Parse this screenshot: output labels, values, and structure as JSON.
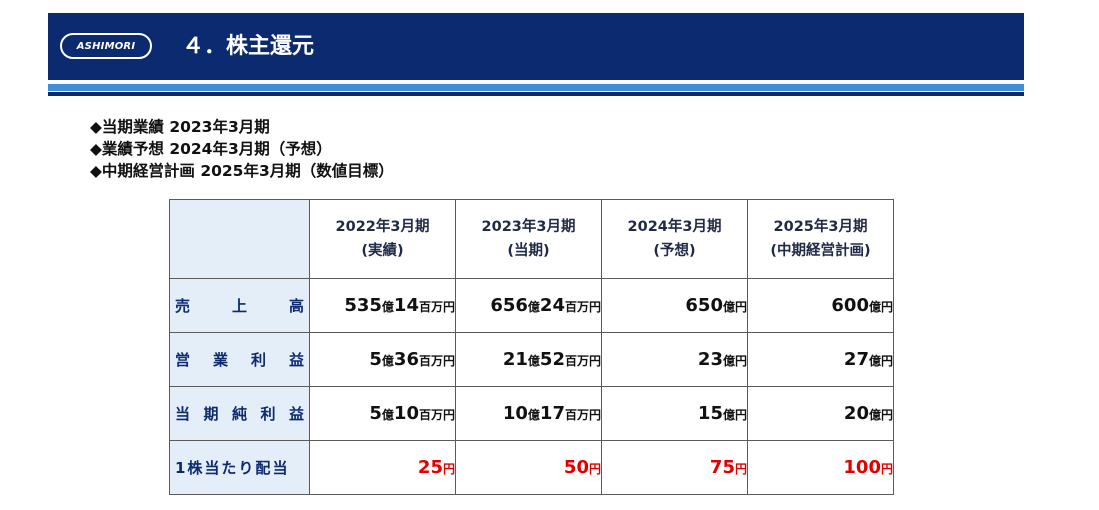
{
  "header": {
    "logo_text": "ASHIMORI",
    "title": "４．株主還元"
  },
  "bullets": [
    "◆当期業績 2023年3月期",
    "◆業績予想 2024年3月期（予想）",
    "◆中期経営計画 2025年3月期（数値目標）"
  ],
  "table": {
    "columns": [
      {
        "line1": "2022年3月期",
        "line2": "(実績)"
      },
      {
        "line1": "2023年3月期",
        "line2": "(当期)"
      },
      {
        "line1": "2024年3月期",
        "line2": "(予想)"
      },
      {
        "line1": "2025年3月期",
        "line2": "(中期経営計画)"
      }
    ],
    "rows": [
      {
        "label_chars": [
          "売",
          "上",
          "高"
        ],
        "cells": [
          {
            "a": "535",
            "b": "億",
            "c": "14",
            "d": "百万円"
          },
          {
            "a": "656",
            "b": "億",
            "c": "24",
            "d": "百万円"
          },
          {
            "a": "650",
            "b": "億円",
            "c": "",
            "d": ""
          },
          {
            "a": "600",
            "b": "億円",
            "c": "",
            "d": ""
          }
        ]
      },
      {
        "label_chars": [
          "営",
          "業",
          "利",
          "益"
        ],
        "cells": [
          {
            "a": "5",
            "b": "億",
            "c": "36",
            "d": "百万円"
          },
          {
            "a": "21",
            "b": "億",
            "c": "52",
            "d": "百万円"
          },
          {
            "a": "23",
            "b": "億円",
            "c": "",
            "d": ""
          },
          {
            "a": "27",
            "b": "億円",
            "c": "",
            "d": ""
          }
        ]
      },
      {
        "label_chars": [
          "当",
          "期",
          "純",
          "利",
          "益"
        ],
        "cells": [
          {
            "a": "5",
            "b": "億",
            "c": "10",
            "d": "百万円"
          },
          {
            "a": "10",
            "b": "億",
            "c": "17",
            "d": "百万円"
          },
          {
            "a": "15",
            "b": "億円",
            "c": "",
            "d": ""
          },
          {
            "a": "20",
            "b": "億円",
            "c": "",
            "d": ""
          }
        ]
      }
    ],
    "dividend": {
      "label": "1株当たり配当",
      "cells": [
        {
          "a": "25",
          "b": "円"
        },
        {
          "a": "50",
          "b": "円"
        },
        {
          "a": "75",
          "b": "円"
        },
        {
          "a": "100",
          "b": "円"
        }
      ],
      "color": "#e00000"
    }
  },
  "colors": {
    "navy": "#0b2a6f",
    "light_blue": "#3e8fd8",
    "label_bg": "#e3eef8",
    "dividend_red": "#e00000"
  }
}
